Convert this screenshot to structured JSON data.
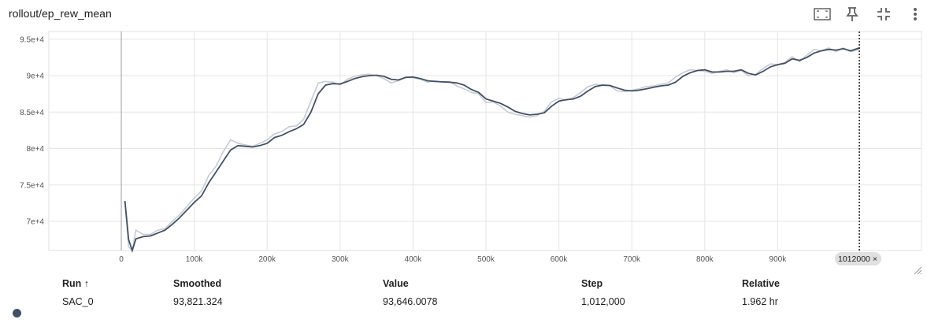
{
  "title": "rollout/ep_rew_mean",
  "toolbar": {
    "icons": [
      "fit-domain-icon",
      "pin-icon",
      "collapse-icon",
      "more-vert-icon"
    ]
  },
  "chart_data": {
    "type": "line",
    "title": "rollout/ep_rew_mean",
    "x_ticks": [
      "0",
      "100k",
      "200k",
      "300k",
      "400k",
      "500k",
      "600k",
      "700k",
      "800k",
      "900k"
    ],
    "y_ticks": [
      "7e+4",
      "7.5e+4",
      "8e+4",
      "8.5e+4",
      "9e+4",
      "9.5e+4"
    ],
    "xlim": [
      0,
      1100000
    ],
    "ylim": [
      66000,
      95500
    ],
    "grid": true,
    "series": [
      {
        "name": "SAC_0",
        "color": "#425066",
        "raw_color": "#c6cad3",
        "x": [
          5000,
          10000,
          15000,
          20000,
          30000,
          40000,
          50000,
          60000,
          70000,
          80000,
          100000,
          110000,
          120000,
          130000,
          140000,
          150000,
          160000,
          170000,
          180000,
          190000,
          200000,
          210000,
          220000,
          230000,
          240000,
          250000,
          260000,
          270000,
          280000,
          290000,
          300000,
          310000,
          320000,
          330000,
          340000,
          350000,
          360000,
          370000,
          380000,
          390000,
          400000,
          410000,
          420000,
          430000,
          440000,
          450000,
          460000,
          470000,
          480000,
          490000,
          500000,
          510000,
          520000,
          530000,
          540000,
          550000,
          560000,
          570000,
          580000,
          590000,
          600000,
          610000,
          620000,
          630000,
          640000,
          650000,
          660000,
          670000,
          680000,
          690000,
          700000,
          710000,
          720000,
          730000,
          740000,
          750000,
          760000,
          770000,
          780000,
          790000,
          800000,
          810000,
          820000,
          830000,
          840000,
          850000,
          860000,
          870000,
          880000,
          890000,
          900000,
          910000,
          920000,
          930000,
          940000,
          950000,
          960000,
          970000,
          980000,
          990000,
          1000000,
          1012000
        ],
        "smoothed": [
          72800,
          67500,
          65800,
          67600,
          67900,
          68000,
          68400,
          68800,
          69600,
          70500,
          72600,
          73500,
          75300,
          76800,
          78300,
          79800,
          80400,
          80300,
          80200,
          80400,
          80700,
          81500,
          81800,
          82300,
          82700,
          83300,
          85000,
          87500,
          88700,
          88900,
          88850,
          89200,
          89600,
          89850,
          90000,
          90050,
          89900,
          89500,
          89400,
          89750,
          89800,
          89600,
          89300,
          89200,
          89150,
          89100,
          89000,
          88700,
          88100,
          87700,
          86800,
          86500,
          86200,
          85700,
          85100,
          84800,
          84600,
          84700,
          84900,
          85800,
          86500,
          86700,
          86800,
          87200,
          87900,
          88500,
          88700,
          88650,
          88300,
          88000,
          87900,
          88000,
          88200,
          88400,
          88600,
          88700,
          89100,
          89900,
          90400,
          90700,
          90800,
          90500,
          90500,
          90600,
          90600,
          90800,
          90300,
          90100,
          90600,
          91200,
          91500,
          91700,
          92300,
          92100,
          92500,
          93100,
          93400,
          93600,
          93500,
          93700,
          93400,
          93800
        ],
        "raw": [
          72800,
          66500,
          65300,
          68800,
          68200,
          68200,
          68800,
          69000,
          70000,
          70900,
          73200,
          74200,
          76300,
          77600,
          79600,
          81200,
          80700,
          80500,
          80300,
          80700,
          81200,
          82000,
          82300,
          83000,
          83100,
          84000,
          86500,
          89000,
          89200,
          89100,
          88700,
          89500,
          89900,
          90100,
          90200,
          90000,
          89600,
          89000,
          89300,
          89800,
          89700,
          89500,
          89100,
          89300,
          89100,
          89200,
          88600,
          88200,
          87700,
          87500,
          86300,
          86400,
          85800,
          85000,
          84700,
          84500,
          84300,
          84500,
          85100,
          86400,
          86900,
          86600,
          87000,
          87700,
          88500,
          88800,
          88700,
          88600,
          87900,
          87800,
          88000,
          88200,
          88500,
          88600,
          88800,
          89000,
          89800,
          90400,
          90800,
          90700,
          90600,
          90300,
          90600,
          90800,
          90400,
          90700,
          90000,
          90200,
          91000,
          91600,
          91500,
          91800,
          92600,
          91900,
          92800,
          93600,
          93400,
          93800,
          93300,
          93800,
          93300,
          93646
        ]
      }
    ]
  },
  "step_chip": {
    "label": "1012000",
    "close": "×"
  },
  "table": {
    "headers": {
      "run": "Run ↑",
      "smoothed": "Smoothed",
      "value": "Value",
      "step": "Step",
      "relative": "Relative"
    },
    "row": {
      "run": "SAC_0",
      "smoothed": "93,821.324",
      "value": "93,646.0078",
      "step": "1,012,000",
      "relative": "1.962 hr"
    }
  }
}
